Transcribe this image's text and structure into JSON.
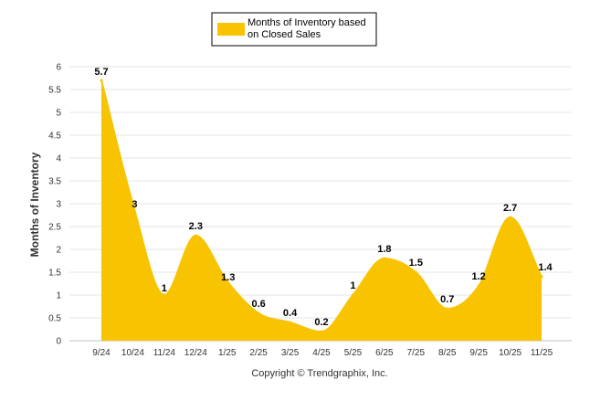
{
  "chart_data": {
    "type": "area",
    "title": "",
    "categories": [
      "9/24",
      "10/24",
      "11/24",
      "12/24",
      "1/25",
      "2/25",
      "3/25",
      "4/25",
      "5/25",
      "6/25",
      "7/25",
      "8/25",
      "9/25",
      "10/25",
      "11/25"
    ],
    "series": [
      {
        "name": "Months of Inventory based on Closed Sales",
        "values": [
          5.7,
          3,
          1,
          2.3,
          1.3,
          0.6,
          0.4,
          0.2,
          1,
          1.8,
          1.5,
          0.7,
          1.2,
          2.7,
          1.4
        ],
        "labels": [
          "5.7",
          "3",
          "1",
          "2.3",
          "1.3",
          "0.6",
          "0.4",
          "0.2",
          "1",
          "1.8",
          "1.5",
          "0.7",
          "1.2",
          "2.7",
          "1.4"
        ]
      }
    ],
    "xlabel": "",
    "ylabel": "Months of Inventory",
    "ylim": [
      0,
      6
    ],
    "yticks": [
      "0",
      "0.5",
      "1",
      "1.5",
      "2",
      "2.5",
      "3",
      "3.5",
      "4",
      "4.5",
      "5",
      "5.5",
      "6"
    ],
    "grid": true,
    "legend_position": "top-center",
    "colors": {
      "fill": "#f8c300",
      "stroke": "#f8c300",
      "legend_border": "#000000"
    }
  },
  "legend": {
    "line1": "Months of Inventory based",
    "line2": "on Closed Sales"
  },
  "footer": {
    "copyright": "Copyright © Trendgraphix, Inc."
  }
}
